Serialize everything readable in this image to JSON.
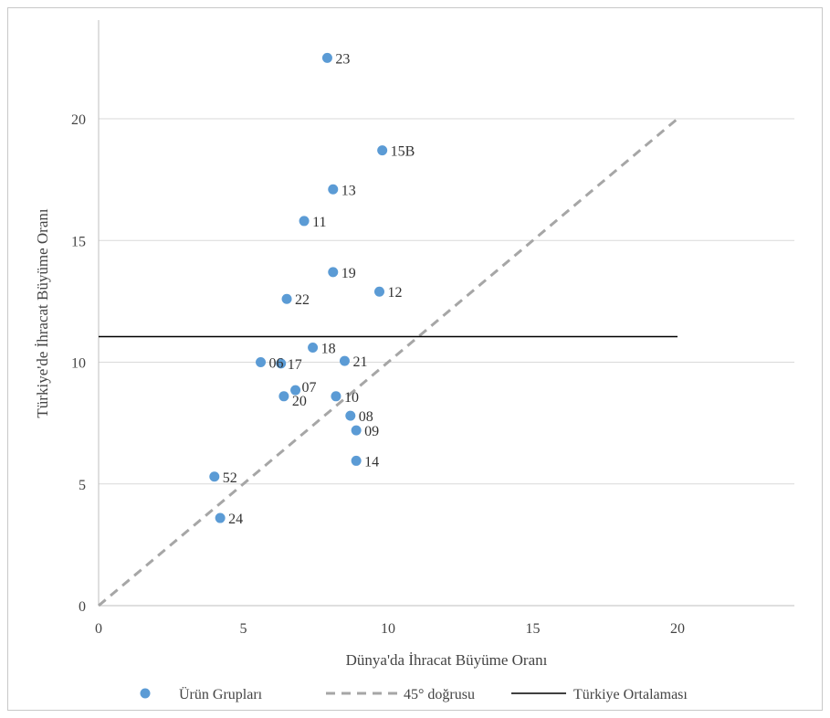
{
  "chart_data": {
    "type": "scatter",
    "xlabel": "Dünya'da İhracat Büyüme  Oranı",
    "ylabel": "Türkiye'de İhracat Büyüme Oranı",
    "xlim": [
      0,
      24
    ],
    "ylim": [
      0,
      24
    ],
    "x_ticks": [
      0,
      5,
      10,
      15,
      20
    ],
    "y_ticks": [
      0,
      5,
      10,
      15,
      20
    ],
    "grid": "horizontal",
    "legend_position": "bottom",
    "colors": {
      "points": "#5b9bd5",
      "diagonal": "#a6a6a6",
      "average": "#000000",
      "grid": "#d9d9d9"
    },
    "series": [
      {
        "name": "Ürün Grupları",
        "points": [
          {
            "label": "23",
            "x": 7.9,
            "y": 22.5
          },
          {
            "label": "15B",
            "x": 9.8,
            "y": 18.7
          },
          {
            "label": "13",
            "x": 8.1,
            "y": 17.1
          },
          {
            "label": "11",
            "x": 7.1,
            "y": 15.8
          },
          {
            "label": "19",
            "x": 8.1,
            "y": 13.7
          },
          {
            "label": "12",
            "x": 9.7,
            "y": 12.9
          },
          {
            "label": "22",
            "x": 6.5,
            "y": 12.6
          },
          {
            "label": "18",
            "x": 7.4,
            "y": 10.6
          },
          {
            "label": "21",
            "x": 8.5,
            "y": 10.05
          },
          {
            "label": "06",
            "x": 5.6,
            "y": 10.0
          },
          {
            "label": "17",
            "x": 6.3,
            "y": 9.95
          },
          {
            "label": "07",
            "x": 6.8,
            "y": 8.85
          },
          {
            "label": "20",
            "x": 6.4,
            "y": 8.6
          },
          {
            "label": "10",
            "x": 8.2,
            "y": 8.6
          },
          {
            "label": "08",
            "x": 8.7,
            "y": 7.8
          },
          {
            "label": "09",
            "x": 8.9,
            "y": 7.2
          },
          {
            "label": "14",
            "x": 8.9,
            "y": 5.95
          },
          {
            "label": "52",
            "x": 4.0,
            "y": 5.3
          },
          {
            "label": "24",
            "x": 4.2,
            "y": 3.6
          }
        ]
      }
    ],
    "reference_lines": [
      {
        "name": "45° doğrusu",
        "style": "dashed",
        "from": [
          0,
          0
        ],
        "to": [
          20,
          20
        ]
      },
      {
        "name": "Türkiye Ortalaması",
        "style": "solid",
        "y": 11.05,
        "x_range": [
          0,
          20
        ]
      }
    ]
  }
}
